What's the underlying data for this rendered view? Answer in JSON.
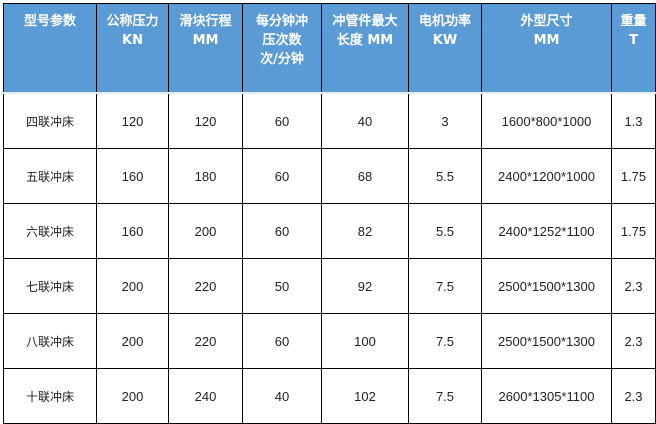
{
  "headers": [
    [
      "型号参数"
    ],
    [
      "公称压力",
      "KN"
    ],
    [
      "滑块行程",
      "MM"
    ],
    [
      "每分钟冲",
      "压次数",
      "次/分钟"
    ],
    [
      "冲管件最大",
      "长度 MM"
    ],
    [
      "电机功率",
      "KW"
    ],
    [
      "外型尺寸",
      "MM"
    ],
    [
      "重量",
      "T"
    ]
  ],
  "rows": [
    [
      "四联冲床",
      "120",
      "120",
      "60",
      "40",
      "3",
      "1600*800*1000",
      "1.3"
    ],
    [
      "五联冲床",
      "160",
      "180",
      "60",
      "68",
      "5.5",
      "2400*1200*1000",
      "1.75"
    ],
    [
      "六联冲床",
      "160",
      "200",
      "60",
      "82",
      "5.5",
      "2400*1252*1100",
      "1.75"
    ],
    [
      "七联冲床",
      "200",
      "220",
      "50",
      "92",
      "7.5",
      "2500*1500*1300",
      "2.3"
    ],
    [
      "八联冲床",
      "200",
      "220",
      "60",
      "100",
      "7.5",
      "2500*1500*1300",
      "2.3"
    ],
    [
      "十联冲床",
      "200",
      "240",
      "40",
      "102",
      "7.5",
      "2600*1305*1100",
      "2.3"
    ]
  ],
  "colors": {
    "header_bg": "#5b9bd5",
    "header_text": "#ffffff"
  }
}
